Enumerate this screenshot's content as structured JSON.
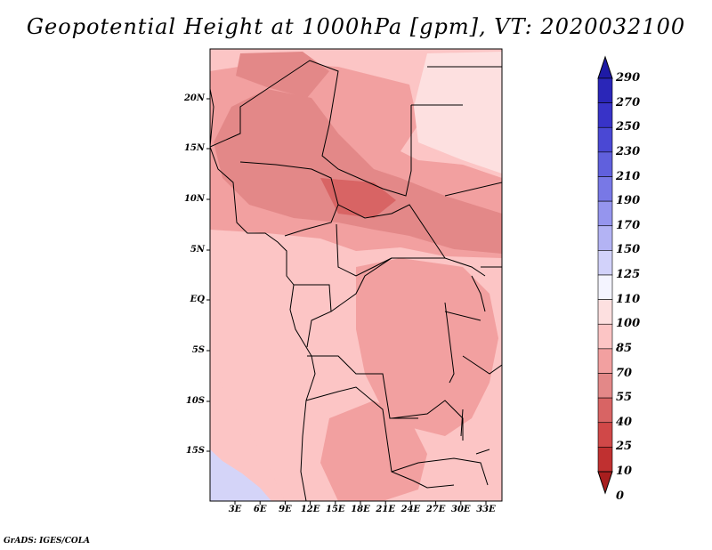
{
  "title": "Geopotential Height at 1000hPa [gpm], VT: 2020032100",
  "credit": "GrADS: IGES/COLA",
  "axes": {
    "lat_ticks": [
      "20N",
      "15N",
      "10N",
      "5N",
      "EQ",
      "5S",
      "10S",
      "15S"
    ],
    "lon_ticks": [
      "3E",
      "6E",
      "9E",
      "12E",
      "15E",
      "18E",
      "21E",
      "24E",
      "27E",
      "30E",
      "33E"
    ]
  },
  "colorbar": {
    "labels": [
      "290",
      "270",
      "250",
      "230",
      "210",
      "190",
      "170",
      "150",
      "125",
      "110",
      "100",
      "85",
      "70",
      "55",
      "40",
      "25",
      "10",
      "0"
    ],
    "colors": [
      "#1e1aa5",
      "#2a26b8",
      "#3833c8",
      "#4a48d4",
      "#6060dd",
      "#7878e6",
      "#9595ee",
      "#b3b3f4",
      "#d2d2fa",
      "#f4f4ff",
      "#fde0e0",
      "#fcc5c5",
      "#f2a0a0",
      "#e38888",
      "#d86464",
      "#d04848",
      "#c03030",
      "#a81e1e"
    ]
  },
  "map_colors": {
    "low_violet": "#d4d4f8",
    "pale": "#fde0e0",
    "light": "#fcc5c5",
    "mid": "#f2a0a0",
    "dark": "#e38888",
    "darker": "#d86464"
  }
}
